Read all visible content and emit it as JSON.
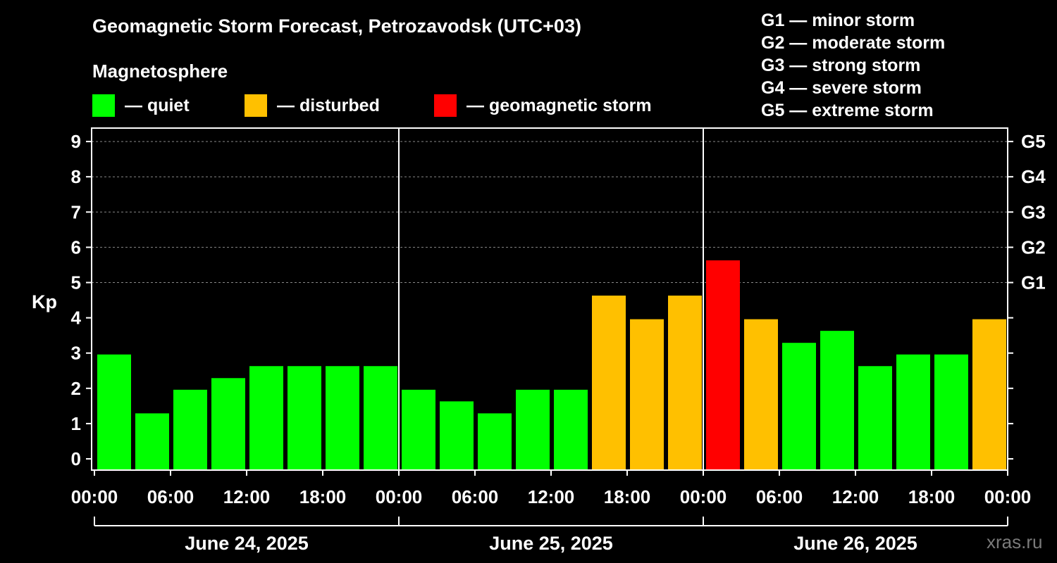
{
  "title": "Geomagnetic Storm Forecast, Petrozavodsk (UTC+03)",
  "subtitle": "Magnetosphere",
  "legend": [
    {
      "label": "— quiet",
      "color": "#00ff00"
    },
    {
      "label": "— disturbed",
      "color": "#ffc000"
    },
    {
      "label": "— geomagnetic storm",
      "color": "#ff0000"
    }
  ],
  "storm_scale": [
    "G1 — minor storm",
    "G2 — moderate storm",
    "G3 — strong storm",
    "G4 — severe storm",
    "G5 — extreme storm"
  ],
  "watermark": "xras.ru",
  "chart_data": {
    "type": "bar",
    "ylabel": "Kp",
    "ylim": [
      0,
      9
    ],
    "yticks": [
      "0",
      "1",
      "2",
      "3",
      "4",
      "5",
      "6",
      "7",
      "8",
      "9"
    ],
    "right_ticks": [
      {
        "kp": 5,
        "label": "G1"
      },
      {
        "kp": 6,
        "label": "G2"
      },
      {
        "kp": 7,
        "label": "G3"
      },
      {
        "kp": 8,
        "label": "G4"
      },
      {
        "kp": 9,
        "label": "G5"
      }
    ],
    "xticks": [
      "00:00",
      "06:00",
      "12:00",
      "18:00",
      "00:00",
      "06:00",
      "12:00",
      "18:00",
      "00:00",
      "06:00",
      "12:00",
      "18:00",
      "00:00"
    ],
    "days": [
      "June 24, 2025",
      "June 25, 2025",
      "June 26, 2025"
    ],
    "grid": "horizontal dashed at 5–9",
    "colors": {
      "quiet": "#00ff00",
      "disturbed": "#ffc000",
      "storm": "#ff0000"
    },
    "values": [
      3.0,
      1.33,
      2.0,
      2.33,
      2.67,
      2.67,
      2.67,
      2.67,
      2.0,
      1.67,
      1.33,
      2.0,
      2.0,
      4.67,
      4.0,
      4.67,
      5.67,
      4.0,
      3.33,
      3.67,
      2.67,
      3.0,
      3.0,
      4.0
    ]
  }
}
